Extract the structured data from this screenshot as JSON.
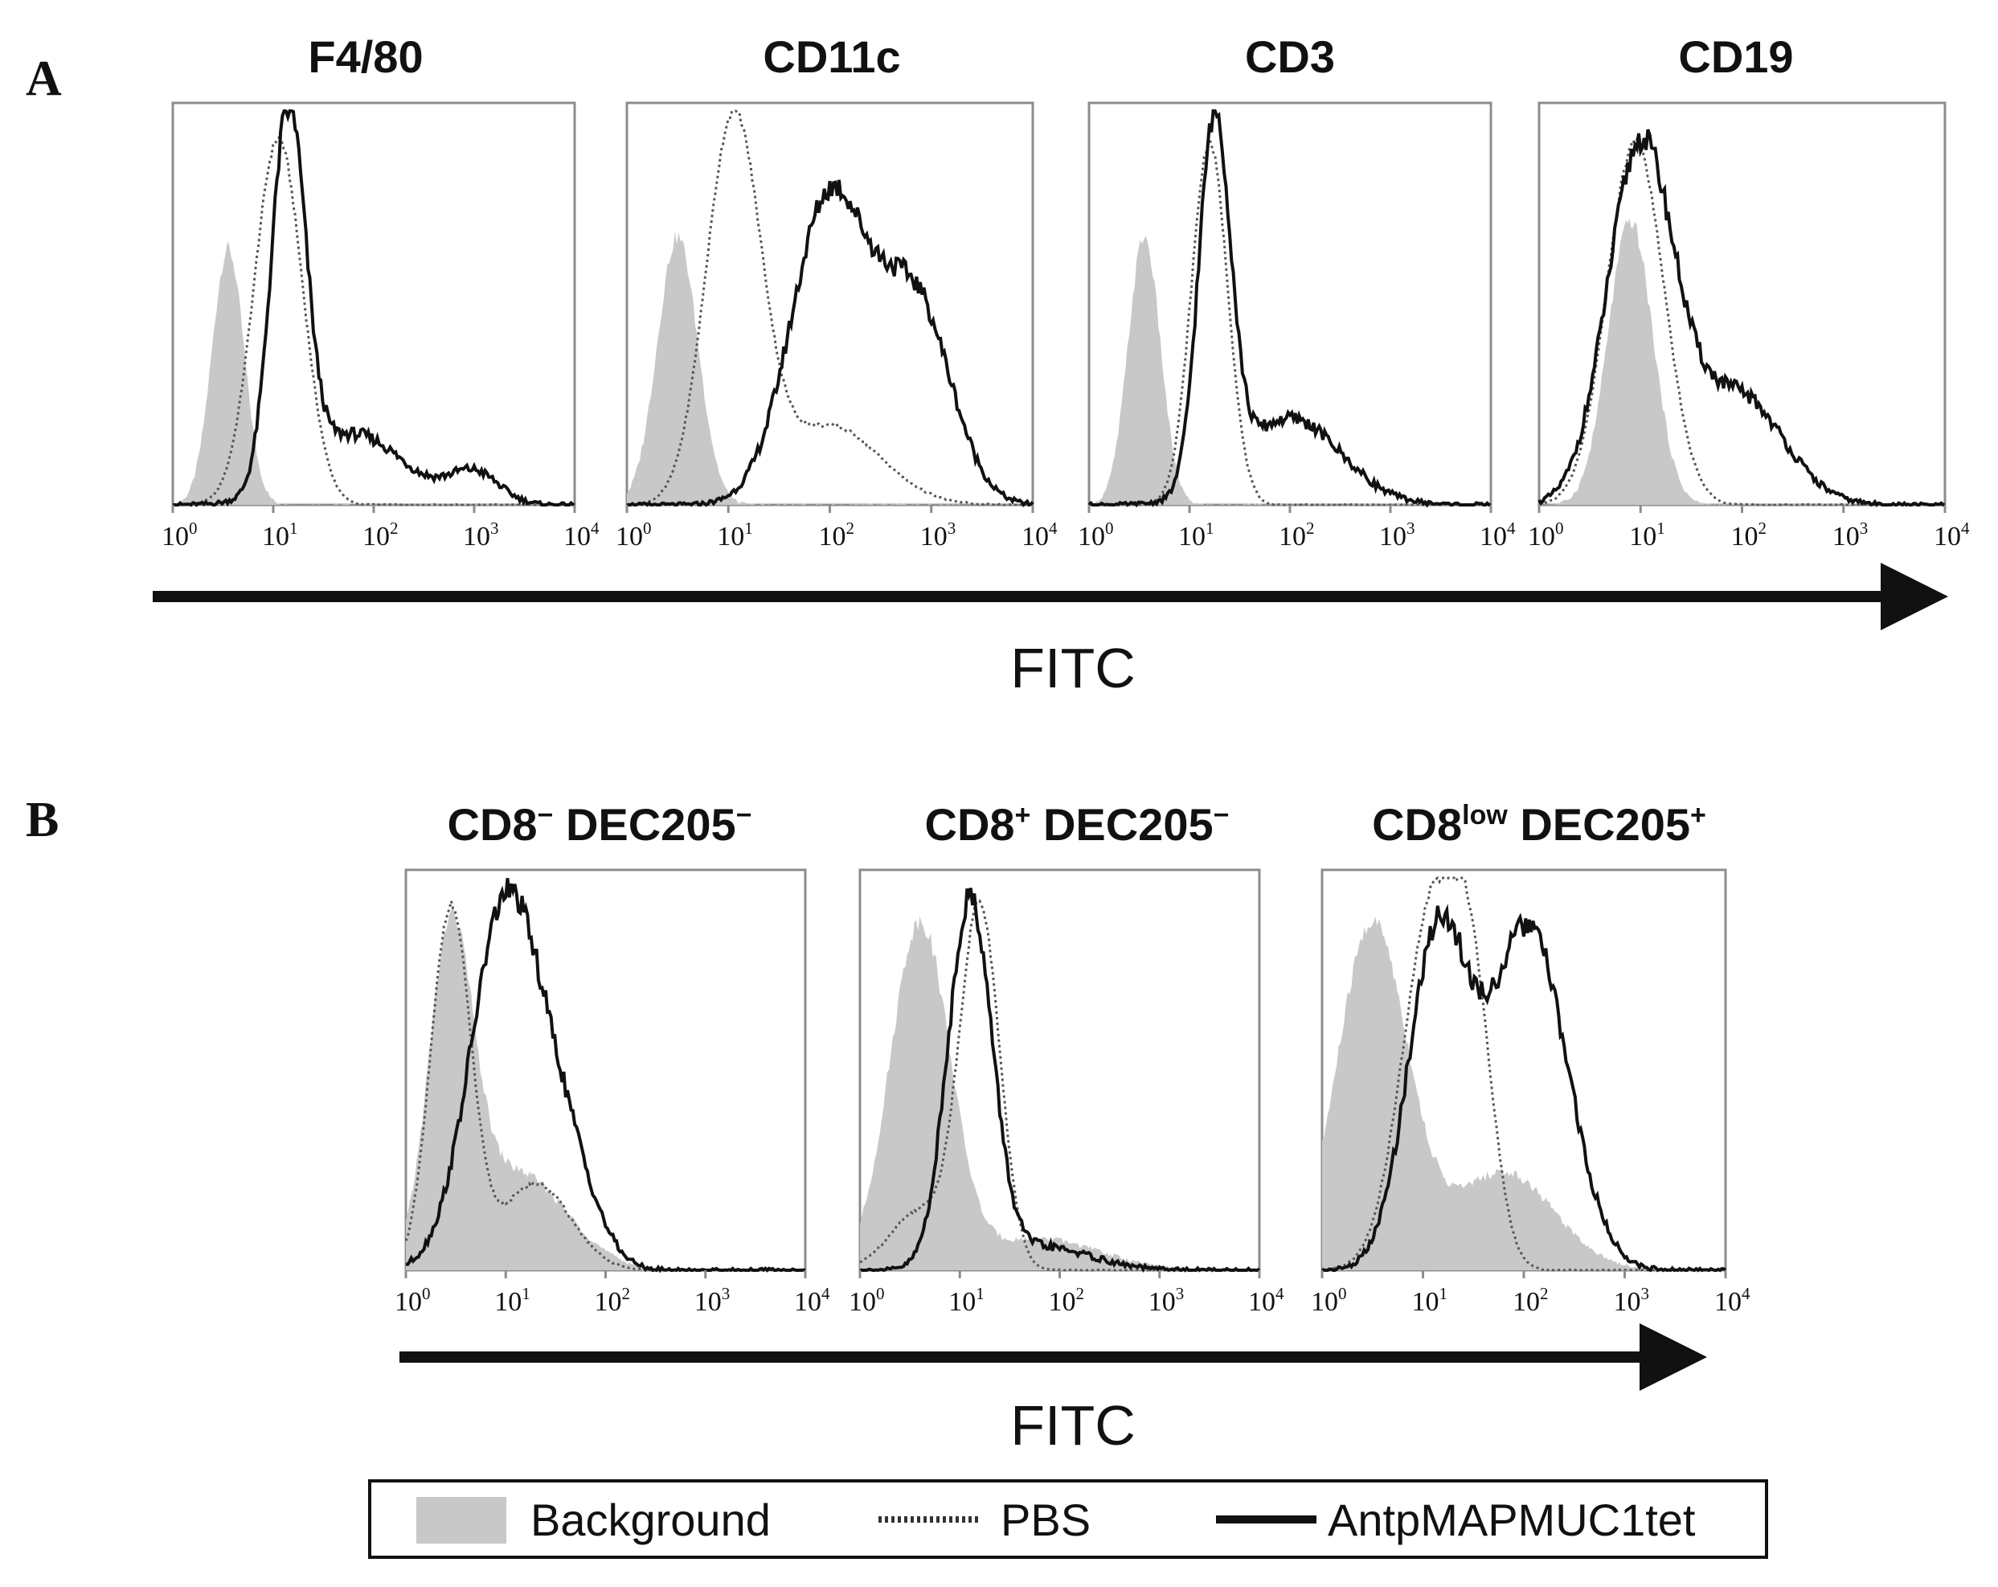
{
  "chart_data": [
    {
      "type": "area",
      "panel": "A",
      "xlabel": "FITC",
      "xscale": "log",
      "xlim": [
        1,
        10000
      ],
      "ticks": [
        "10^0",
        "10^1",
        "10^2",
        "10^3",
        "10^4"
      ],
      "legend": [
        "Background",
        "PBS",
        "AntpMAPMUC1tet"
      ],
      "subplots": [
        {
          "title": "F4/80",
          "series": [
            {
              "name": "Background",
              "peaks": [
                [
                  0.55,
                  0.65,
                  0.16
                ]
              ]
            },
            {
              "name": "PBS",
              "peaks": [
                [
                  1.05,
                  0.93,
                  0.24
                ]
              ]
            },
            {
              "name": "AntpMAPMUC1tet",
              "peaks": [
                [
                  1.15,
                  0.95,
                  0.17
                ],
                [
                  1.8,
                  0.18,
                  0.5
                ],
                [
                  3.0,
                  0.08,
                  0.25
                ]
              ]
            }
          ]
        },
        {
          "title": "CD11c",
          "series": [
            {
              "name": "Background",
              "peaks": [
                [
                  0.5,
                  0.68,
                  0.2
                ]
              ]
            },
            {
              "name": "PBS",
              "peaks": [
                [
                  1.05,
                  0.97,
                  0.27
                ],
                [
                  2.0,
                  0.2,
                  0.5
                ]
              ]
            },
            {
              "name": "AntpMAPMUC1tet",
              "peaks": [
                [
                  2.0,
                  0.78,
                  0.38
                ],
                [
                  2.85,
                  0.5,
                  0.35
                ]
              ]
            }
          ]
        },
        {
          "title": "CD3",
          "series": [
            {
              "name": "Background",
              "peaks": [
                [
                  0.55,
                  0.68,
                  0.16
                ]
              ]
            },
            {
              "name": "PBS",
              "peaks": [
                [
                  1.2,
                  0.92,
                  0.18
                ]
              ]
            },
            {
              "name": "AntpMAPMUC1tet",
              "peaks": [
                [
                  1.25,
                  0.93,
                  0.16
                ],
                [
                  2.0,
                  0.22,
                  0.5
                ]
              ]
            }
          ]
        },
        {
          "title": "CD19",
          "series": [
            {
              "name": "Background",
              "peaks": [
                [
                  0.9,
                  0.72,
                  0.22
                ]
              ]
            },
            {
              "name": "PBS",
              "peaks": [
                [
                  0.95,
                  0.92,
                  0.28
                ]
              ]
            },
            {
              "name": "AntpMAPMUC1tet",
              "peaks": [
                [
                  1.0,
                  0.9,
                  0.33
                ],
                [
                  1.95,
                  0.28,
                  0.45
                ]
              ]
            }
          ]
        }
      ]
    },
    {
      "type": "area",
      "panel": "B",
      "xlabel": "FITC",
      "xscale": "log",
      "xlim": [
        1,
        10000
      ],
      "ticks": [
        "10^0",
        "10^1",
        "10^2",
        "10^3",
        "10^4"
      ],
      "legend": [
        "Background",
        "PBS",
        "AntpMAPMUC1tet"
      ],
      "subplots": [
        {
          "title_main": "CD8",
          "title_sup": "−",
          "title_main2": " DEC205",
          "title_sup2": "−",
          "series": [
            {
              "name": "Background",
              "peaks": [
                [
                  0.45,
                  0.8,
                  0.22
                ],
                [
                  1.1,
                  0.25,
                  0.5
                ]
              ]
            },
            {
              "name": "PBS",
              "peaks": [
                [
                  0.45,
                  0.92,
                  0.2
                ],
                [
                  1.3,
                  0.22,
                  0.35
                ]
              ]
            },
            {
              "name": "AntpMAPMUC1tet",
              "peaks": [
                [
                  1.0,
                  0.93,
                  0.35
                ],
                [
                  1.6,
                  0.25,
                  0.3
                ]
              ]
            }
          ]
        },
        {
          "title_main": "CD8",
          "title_sup": "+",
          "title_main2": " DEC205",
          "title_sup2": "−",
          "series": [
            {
              "name": "Background",
              "peaks": [
                [
                  0.6,
                  0.88,
                  0.3
                ],
                [
                  1.8,
                  0.08,
                  0.6
                ]
              ]
            },
            {
              "name": "PBS",
              "peaks": [
                [
                  1.2,
                  0.92,
                  0.2
                ],
                [
                  0.6,
                  0.15,
                  0.3
                ]
              ]
            },
            {
              "name": "AntpMAPMUC1tet",
              "peaks": [
                [
                  1.1,
                  0.93,
                  0.22
                ],
                [
                  1.8,
                  0.06,
                  0.5
                ]
              ]
            }
          ]
        },
        {
          "title_main": "CD8",
          "title_sup": "low",
          "title_main2": " DEC205",
          "title_sup2": "+",
          "series": [
            {
              "name": "Background",
              "peaks": [
                [
                  0.5,
                  0.88,
                  0.35
                ],
                [
                  1.8,
                  0.25,
                  0.5
                ]
              ]
            },
            {
              "name": "PBS",
              "peaks": [
                [
                  1.1,
                  0.92,
                  0.3
                ],
                [
                  1.5,
                  0.5,
                  0.2
                ]
              ]
            },
            {
              "name": "AntpMAPMUC1tet",
              "peaks": [
                [
                  1.15,
                  0.85,
                  0.3
                ],
                [
                  2.05,
                  0.87,
                  0.38
                ]
              ]
            }
          ]
        }
      ]
    }
  ],
  "colors": {
    "background_fill": "#c8c8c8",
    "pbs_line": "#555555",
    "antp_line": "#111111",
    "frame": "#8c8c8c"
  }
}
